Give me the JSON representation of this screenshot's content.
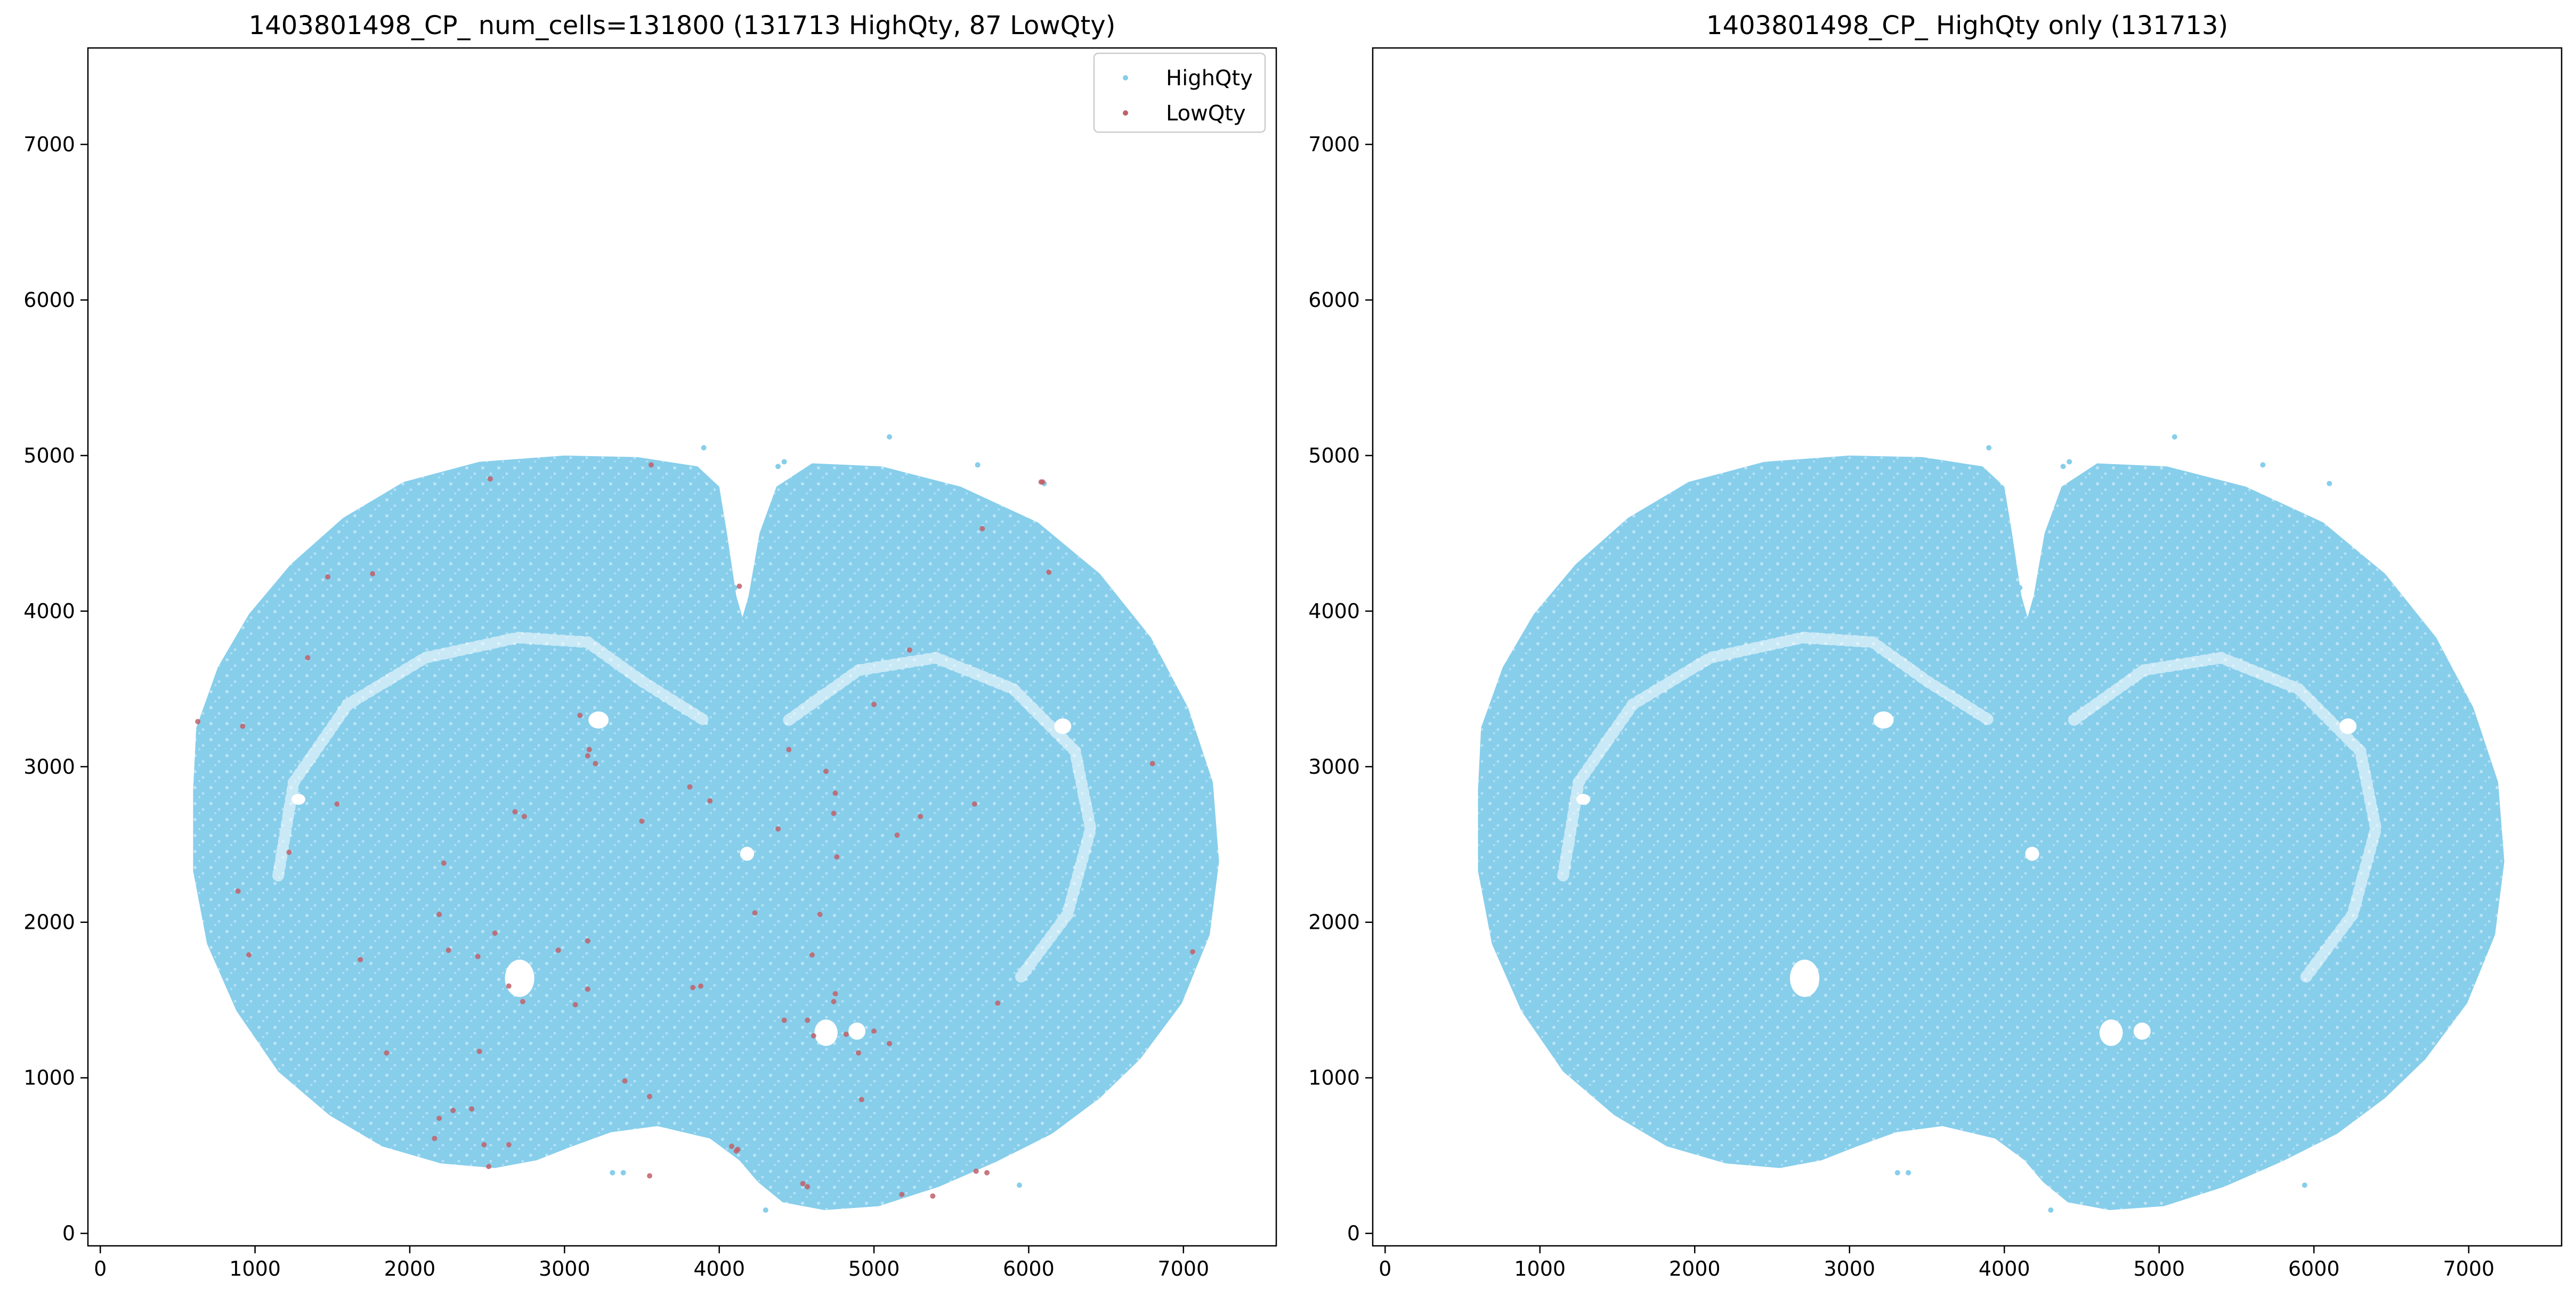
{
  "colors": {
    "high": "#87CEEB",
    "low": "#C0606A",
    "axis": "#000000",
    "background": "#ffffff"
  },
  "legend": {
    "placement": "top-right",
    "items": [
      {
        "key": "high",
        "label": "HighQty"
      },
      {
        "key": "low",
        "label": "LowQty"
      }
    ]
  },
  "chart_data": [
    {
      "type": "scatter",
      "title": "1403801498_CP_ num_cells=131800 (131713 HighQty, 87 LowQty)",
      "xlabel": "",
      "ylabel": "",
      "xlim": [
        -80,
        7600
      ],
      "ylim": [
        -80,
        7620
      ],
      "xticks": [
        0,
        1000,
        2000,
        3000,
        4000,
        5000,
        6000,
        7000
      ],
      "yticks": [
        0,
        1000,
        2000,
        3000,
        4000,
        5000,
        6000,
        7000
      ],
      "grid": false,
      "legend": true,
      "series": [
        {
          "name": "HighQty",
          "key": "high",
          "count": 131713,
          "extent": {
            "x": [
              560,
              7230
            ],
            "y": [
              150,
              5120
            ]
          }
        },
        {
          "name": "LowQty",
          "key": "low",
          "count": 87,
          "points": [
            [
              2520,
              4850
            ],
            [
              3560,
              4940
            ],
            [
              6090,
              4830
            ],
            [
              6080,
              4830
            ],
            [
              5700,
              4530
            ],
            [
              1470,
              4220
            ],
            [
              1760,
              4240
            ],
            [
              6130,
              4250
            ],
            [
              3100,
              3330
            ],
            [
              3160,
              3110
            ],
            [
              3150,
              3070
            ],
            [
              3200,
              3020
            ],
            [
              630,
              3290
            ],
            [
              920,
              3260
            ],
            [
              4690,
              2970
            ],
            [
              4750,
              2830
            ],
            [
              4740,
              2700
            ],
            [
              4760,
              2420
            ],
            [
              4230,
              2060
            ],
            [
              5150,
              2560
            ],
            [
              2680,
              2710
            ],
            [
              2740,
              2680
            ],
            [
              2550,
              1930
            ],
            [
              2440,
              1780
            ],
            [
              2250,
              1820
            ],
            [
              2190,
              2050
            ],
            [
              1680,
              1760
            ],
            [
              2960,
              1820
            ],
            [
              3150,
              1880
            ],
            [
              2640,
              1590
            ],
            [
              2730,
              1490
            ],
            [
              3070,
              1470
            ],
            [
              3150,
              1570
            ],
            [
              3830,
              1580
            ],
            [
              3880,
              1590
            ],
            [
              4600,
              1790
            ],
            [
              4750,
              1540
            ],
            [
              4740,
              1490
            ],
            [
              4610,
              1270
            ],
            [
              4820,
              1280
            ],
            [
              4900,
              1160
            ],
            [
              5000,
              1300
            ],
            [
              5100,
              1220
            ],
            [
              5800,
              1480
            ],
            [
              4420,
              1370
            ],
            [
              4570,
              1370
            ],
            [
              1850,
              1160
            ],
            [
              2450,
              1170
            ],
            [
              4920,
              860
            ],
            [
              3550,
              880
            ],
            [
              2280,
              790
            ],
            [
              2400,
              800
            ],
            [
              2190,
              740
            ],
            [
              2160,
              610
            ],
            [
              2480,
              570
            ],
            [
              2640,
              570
            ],
            [
              2510,
              430
            ],
            [
              4080,
              560
            ],
            [
              4120,
              540
            ],
            [
              4110,
              530
            ],
            [
              4540,
              320
            ],
            [
              4570,
              300
            ],
            [
              5180,
              250
            ],
            [
              5380,
              240
            ],
            [
              5660,
              400
            ],
            [
              5730,
              390
            ],
            [
              3550,
              370
            ],
            [
              7060,
              1810
            ],
            [
              6800,
              3020
            ],
            [
              5650,
              2760
            ],
            [
              5300,
              2680
            ],
            [
              5000,
              3400
            ],
            [
              4380,
              2600
            ],
            [
              4450,
              3110
            ],
            [
              3500,
              2650
            ],
            [
              3810,
              2870
            ],
            [
              3940,
              2780
            ],
            [
              2220,
              2380
            ],
            [
              1530,
              2760
            ],
            [
              1220,
              2450
            ],
            [
              960,
              1790
            ],
            [
              890,
              2200
            ],
            [
              1340,
              3700
            ],
            [
              4130,
              4160
            ],
            [
              4650,
              2050
            ],
            [
              5230,
              3750
            ],
            [
              3390,
              980
            ]
          ]
        }
      ]
    },
    {
      "type": "scatter",
      "title": "1403801498_CP_ HighQty only (131713)",
      "xlabel": "",
      "ylabel": "",
      "xlim": [
        -80,
        7600
      ],
      "ylim": [
        -80,
        7620
      ],
      "xticks": [
        0,
        1000,
        2000,
        3000,
        4000,
        5000,
        6000,
        7000
      ],
      "yticks": [
        0,
        1000,
        2000,
        3000,
        4000,
        5000,
        6000,
        7000
      ],
      "grid": false,
      "legend": false,
      "series": [
        {
          "name": "HighQty",
          "key": "high",
          "count": 131713,
          "extent": {
            "x": [
              560,
              7230
            ],
            "y": [
              150,
              5120
            ]
          }
        }
      ]
    }
  ]
}
